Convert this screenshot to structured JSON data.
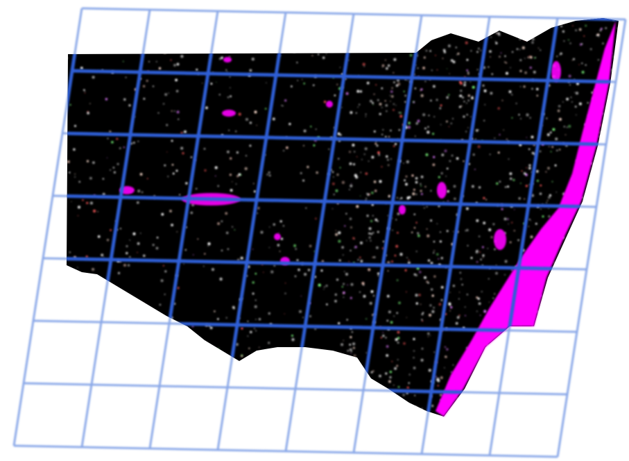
{
  "map": {
    "style": "satellite-raster-mosaic-over-tile-grid",
    "background_color": "#ffffff",
    "raster_base_color": "#000000",
    "nodata_color": "#ff00ff",
    "speckle_colors": [
      "#ffffff",
      "#f2c6b8",
      "#ff5a5a",
      "#e07aff",
      "#7dff7d",
      "#ffe0d0"
    ],
    "grid": {
      "line_color": "#2f5fd6",
      "outer_line_color": "#8aa8e8",
      "columns": 8,
      "rows": 7
    },
    "features": [
      "satellite-coverage-area",
      "no-data-strip",
      "tile-grid"
    ]
  }
}
